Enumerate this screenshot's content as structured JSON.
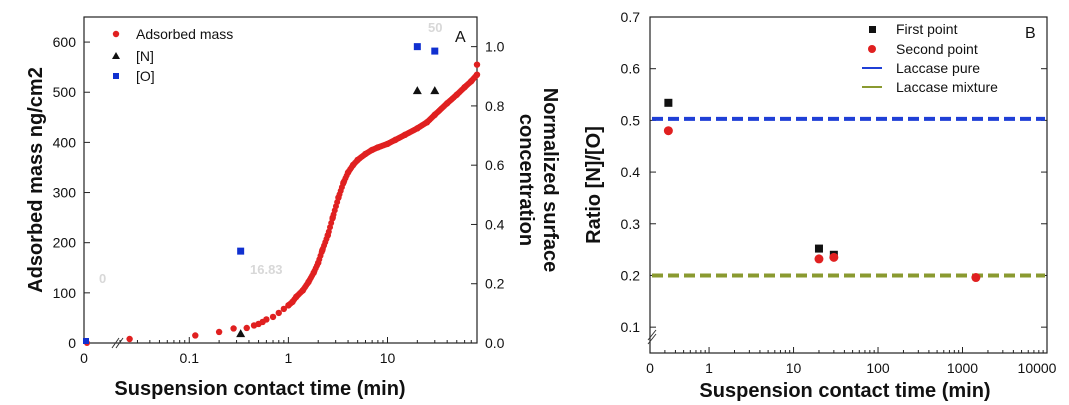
{
  "chart_data": [
    {
      "id": "A",
      "type": "scatter",
      "panel_label": "A",
      "xlabel": "Suspension contact time (min)",
      "xscale": "log (with broken axis at 0)",
      "x_ticks": [
        "0",
        "0.1",
        "1",
        "10"
      ],
      "xlim": [
        0.02,
        80
      ],
      "ylabel_left": "Adsorbed mass ng/cm2",
      "ylim_left": [
        0,
        650
      ],
      "y_ticks_left": [
        "0",
        "100",
        "200",
        "300",
        "400",
        "500",
        "600"
      ],
      "ylabel_right": [
        "Normalized surface",
        "concentration"
      ],
      "ylim_right": [
        0,
        1.1
      ],
      "y_ticks_right": [
        "0.0",
        "0.2",
        "0.4",
        "0.6",
        "0.8",
        "1.0"
      ],
      "legend_position": "top-left",
      "annotations": [
        "0",
        "16.83",
        "50"
      ],
      "series": [
        {
          "name": "Adsorbed mass",
          "axis": "left",
          "color": "#e02020",
          "marker": "circle",
          "zero_x_points": [
            {
              "y": 0
            }
          ],
          "points": [
            [
              0.025,
              8
            ],
            [
              0.115,
              15
            ],
            [
              0.2,
              22
            ],
            [
              0.28,
              29
            ],
            [
              0.38,
              30
            ],
            [
              0.45,
              35
            ],
            [
              0.5,
              38
            ],
            [
              0.55,
              42
            ],
            [
              0.6,
              47
            ],
            [
              0.7,
              52
            ],
            [
              0.8,
              60
            ],
            [
              0.9,
              68
            ],
            [
              1.0,
              75
            ],
            [
              1.1,
              82
            ],
            [
              1.2,
              92
            ],
            [
              1.4,
              105
            ],
            [
              1.6,
              122
            ],
            [
              1.8,
              140
            ],
            [
              2.0,
              160
            ],
            [
              2.2,
              185
            ],
            [
              2.5,
              215
            ],
            [
              2.8,
              250
            ],
            [
              3.2,
              290
            ],
            [
              3.6,
              320
            ],
            [
              4.0,
              340
            ],
            [
              4.5,
              355
            ],
            [
              5.0,
              365
            ],
            [
              6.0,
              377
            ],
            [
              7.0,
              385
            ],
            [
              8.0,
              390
            ],
            [
              10,
              397
            ],
            [
              12,
              405
            ],
            [
              15,
              415
            ],
            [
              20,
              428
            ],
            [
              25,
              440
            ],
            [
              30,
              455
            ],
            [
              40,
              478
            ],
            [
              50,
              495
            ],
            [
              60,
              510
            ],
            [
              70,
              522
            ],
            [
              80,
              535
            ],
            [
              80,
              555
            ]
          ]
        },
        {
          "name": "[N]",
          "axis": "right",
          "color": "#111111",
          "marker": "triangle",
          "points": [
            [
              0.33,
              0.03
            ],
            [
              20,
              0.85
            ],
            [
              30,
              0.85
            ]
          ]
        },
        {
          "name": "[O]",
          "axis": "right",
          "color": "#1030d0",
          "marker": "square",
          "zero_x_points": [
            {
              "y": 0.0
            }
          ],
          "points": [
            [
              0.33,
              0.31
            ],
            [
              20,
              1.0
            ],
            [
              30,
              0.985
            ]
          ]
        }
      ]
    },
    {
      "id": "B",
      "type": "scatter",
      "panel_label": "B",
      "xlabel": "Suspension contact time (min)",
      "xscale": "log (with broken axis at 0)",
      "x_ticks": [
        "0",
        "1",
        "10",
        "100",
        "1000",
        "10000"
      ],
      "xlim": [
        0.2,
        10000
      ],
      "ylabel": "Ratio [N]/[O]",
      "ylim": [
        0.05,
        0.7
      ],
      "y_ticks": [
        "0.1",
        "0.2",
        "0.3",
        "0.4",
        "0.5",
        "0.6",
        "0.7"
      ],
      "legend_position": "top-right",
      "series": [
        {
          "name": "First point",
          "color": "#111111",
          "marker": "square",
          "points": [
            [
              0.33,
              0.534
            ],
            [
              20,
              0.252
            ],
            [
              30,
              0.24
            ]
          ]
        },
        {
          "name": "Second point",
          "color": "#e02020",
          "marker": "circle",
          "points": [
            [
              0.33,
              0.48
            ],
            [
              20,
              0.232
            ],
            [
              30,
              0.235
            ],
            [
              1440,
              0.196
            ]
          ]
        },
        {
          "name": "Laccase pure",
          "color": "#1f3fd6",
          "line": "dashed",
          "y": 0.503
        },
        {
          "name": "Laccase mixture",
          "color": "#8a9a30",
          "line": "dashed",
          "y": 0.2
        }
      ]
    }
  ]
}
